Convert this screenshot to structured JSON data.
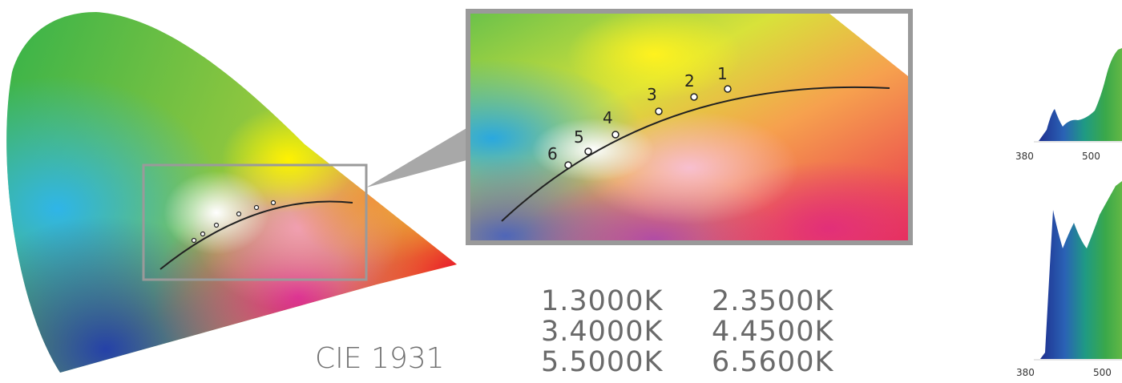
{
  "diagram_label": "CIE 1931",
  "inset_points": [
    {
      "label": "1"
    },
    {
      "label": "2"
    },
    {
      "label": "3"
    },
    {
      "label": "4"
    },
    {
      "label": "5"
    },
    {
      "label": "6"
    }
  ],
  "legend": [
    "1.3000K",
    "2.3500K",
    "3.4000K",
    "4.4500K",
    "5.5000K",
    "6.5600K"
  ],
  "spectra": [
    {
      "ticks": [
        "380",
        "500"
      ]
    },
    {
      "ticks": [
        "380",
        "500"
      ]
    }
  ],
  "colors": {
    "frame": "#9a9a9a",
    "locus_line": "#222222",
    "text": "#6a6a6a"
  }
}
